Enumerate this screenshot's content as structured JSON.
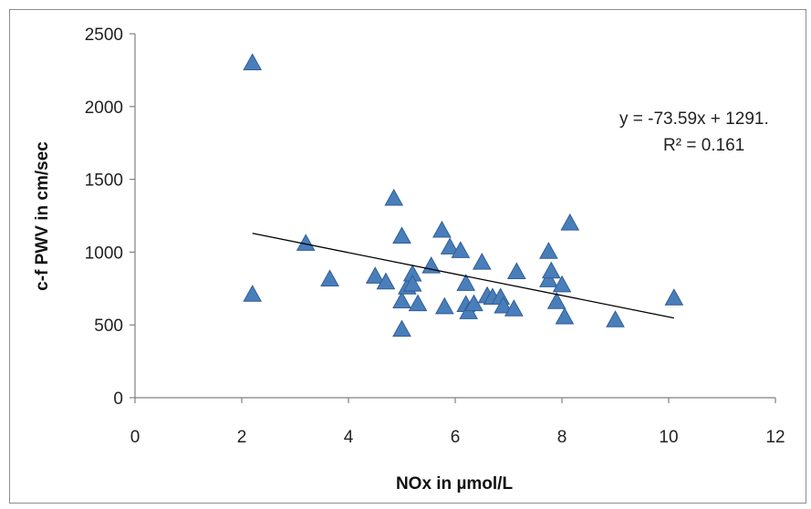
{
  "chart_data": {
    "type": "scatter",
    "xlabel": "NOx in µmol/L",
    "ylabel": "c-f PWV in cm/sec",
    "xlim": [
      0,
      12
    ],
    "ylim": [
      0,
      2500
    ],
    "xticks": [
      0,
      2,
      4,
      6,
      8,
      10,
      12
    ],
    "yticks": [
      0,
      500,
      1000,
      1500,
      2000,
      2500
    ],
    "marker": "triangle",
    "marker_color": "#4a7ebb",
    "grid": false,
    "trendline": {
      "type": "linear",
      "slope": -73.59,
      "intercept": 1291,
      "x_range": [
        2.2,
        10.1
      ]
    },
    "annotation": {
      "equation": "y = -73.59x + 1291.",
      "r_squared": "R² = 0.161"
    },
    "points": [
      {
        "x": 2.2,
        "y": 2300
      },
      {
        "x": 2.2,
        "y": 710
      },
      {
        "x": 3.2,
        "y": 1060
      },
      {
        "x": 3.65,
        "y": 815
      },
      {
        "x": 4.5,
        "y": 835
      },
      {
        "x": 4.7,
        "y": 795
      },
      {
        "x": 4.85,
        "y": 1370
      },
      {
        "x": 5.0,
        "y": 470
      },
      {
        "x": 5.0,
        "y": 1110
      },
      {
        "x": 5.0,
        "y": 665
      },
      {
        "x": 5.1,
        "y": 760
      },
      {
        "x": 5.2,
        "y": 850
      },
      {
        "x": 5.2,
        "y": 780
      },
      {
        "x": 5.3,
        "y": 645
      },
      {
        "x": 5.55,
        "y": 905
      },
      {
        "x": 5.75,
        "y": 1150
      },
      {
        "x": 5.8,
        "y": 625
      },
      {
        "x": 5.9,
        "y": 1035
      },
      {
        "x": 6.1,
        "y": 1010
      },
      {
        "x": 6.2,
        "y": 785
      },
      {
        "x": 6.2,
        "y": 640
      },
      {
        "x": 6.25,
        "y": 590
      },
      {
        "x": 6.35,
        "y": 645
      },
      {
        "x": 6.5,
        "y": 930
      },
      {
        "x": 6.6,
        "y": 700
      },
      {
        "x": 6.7,
        "y": 690
      },
      {
        "x": 6.85,
        "y": 690
      },
      {
        "x": 6.9,
        "y": 630
      },
      {
        "x": 7.1,
        "y": 610
      },
      {
        "x": 7.15,
        "y": 865
      },
      {
        "x": 7.75,
        "y": 1005
      },
      {
        "x": 7.75,
        "y": 810
      },
      {
        "x": 7.8,
        "y": 870
      },
      {
        "x": 7.9,
        "y": 660
      },
      {
        "x": 8.0,
        "y": 775
      },
      {
        "x": 8.05,
        "y": 555
      },
      {
        "x": 8.15,
        "y": 1200
      },
      {
        "x": 9.0,
        "y": 535
      },
      {
        "x": 10.1,
        "y": 685
      }
    ]
  }
}
